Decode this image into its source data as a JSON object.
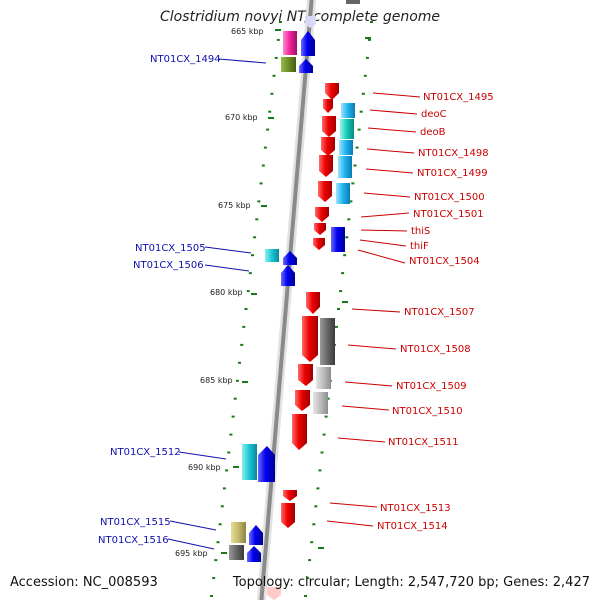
{
  "title": "Clostridium novyi NT, complete genome",
  "accession": "Accession: NC_008593",
  "topology": "Topology: circular; Length: 2,547,720 bp; Genes: 2,427",
  "colors": {
    "left_label": "#1010b0",
    "right_label": "#cc0000",
    "scale": "#1a7a1a",
    "backbone": "#8a8a8a"
  },
  "scale_labels": [
    "665 kbp",
    "670 kbp",
    "675 kbp",
    "680 kbp",
    "685 kbp",
    "690 kbp",
    "695 kbp"
  ],
  "left_genes": [
    "NT01CX_1494",
    "NT01CX_1505",
    "NT01CX_1506",
    "NT01CX_1512",
    "NT01CX_1515",
    "NT01CX_1516"
  ],
  "right_genes": [
    "NT01CX_1495",
    "deoC",
    "deoB",
    "NT01CX_1498",
    "NT01CX_1499",
    "NT01CX_1500",
    "NT01CX_1501",
    "thiS",
    "thiF",
    "NT01CX_1504",
    "NT01CX_1507",
    "NT01CX_1508",
    "NT01CX_1509",
    "NT01CX_1510",
    "NT01CX_1511",
    "NT01CX_1513",
    "NT01CX_1514"
  ]
}
